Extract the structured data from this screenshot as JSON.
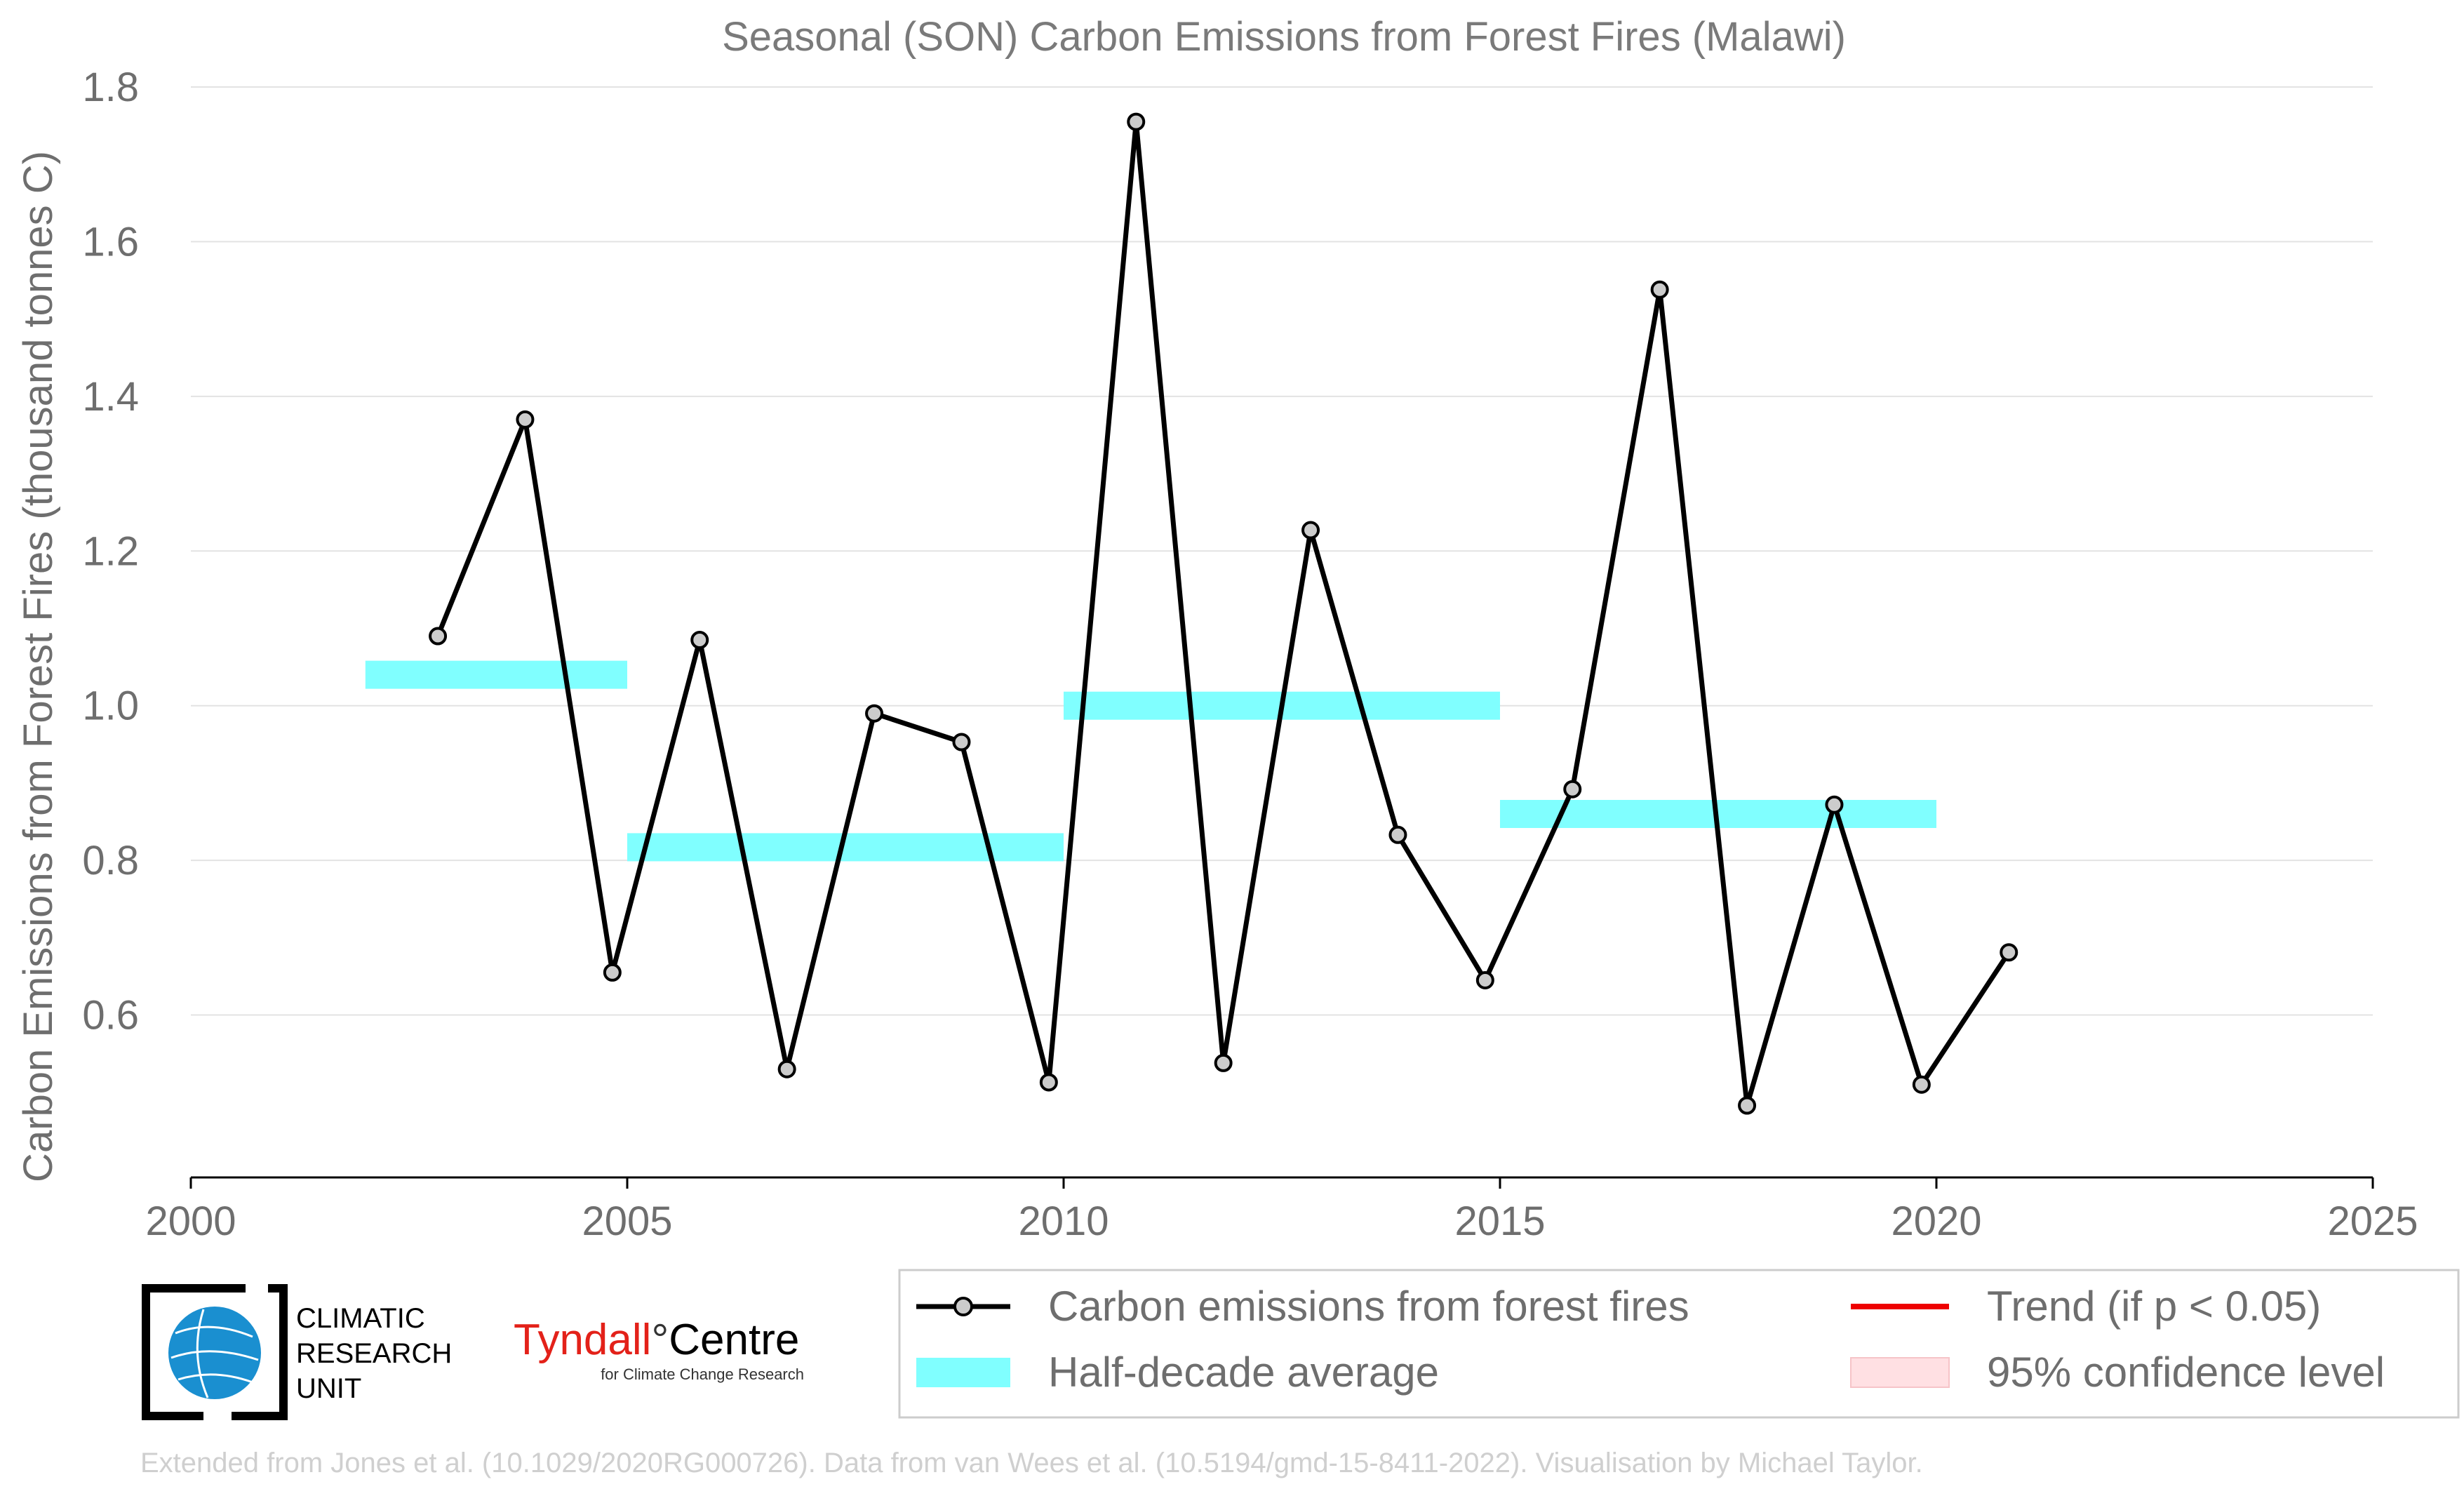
{
  "chart_data": {
    "type": "line",
    "title": "Seasonal (SON) Carbon Emissions from Forest Fires (Malawi)",
    "xlabel": "",
    "ylabel": "Carbon Emissions from Forest Fires (thousand tonnes C)",
    "xlim": [
      2000,
      2025
    ],
    "ylim": [
      0.39,
      1.8
    ],
    "x_ticks": [
      2000,
      2005,
      2010,
      2015,
      2020,
      2025
    ],
    "y_ticks": [
      0.6,
      0.8,
      1.0,
      1.2,
      1.4,
      1.6,
      1.8
    ],
    "y_tick_labels": [
      "0.6",
      "0.8",
      "1.0",
      "1.2",
      "1.4",
      "1.6",
      "1.8"
    ],
    "grid": "horizontal",
    "series": [
      {
        "name": "Carbon emissions from forest fires",
        "color": "#000000",
        "marker_fill": "#cccccc",
        "x": [
          2002.83,
          2003.83,
          2004.83,
          2005.83,
          2006.83,
          2007.83,
          2008.83,
          2009.83,
          2010.83,
          2011.83,
          2012.83,
          2013.83,
          2014.83,
          2015.83,
          2016.83,
          2017.83,
          2018.83,
          2019.83,
          2020.83
        ],
        "y": [
          1.09,
          1.37,
          0.655,
          1.085,
          0.53,
          0.99,
          0.953,
          0.513,
          1.755,
          0.538,
          1.227,
          0.833,
          0.645,
          0.892,
          1.538,
          0.483,
          0.872,
          0.51,
          0.681
        ]
      }
    ],
    "half_decade_average": {
      "name": "Half-decade average",
      "color": "#80ffff",
      "segments": [
        {
          "x0": 2002,
          "x1": 2005,
          "y": 1.04
        },
        {
          "x0": 2005,
          "x1": 2010,
          "y": 0.817
        },
        {
          "x0": 2010,
          "x1": 2015,
          "y": 1.0
        },
        {
          "x0": 2015,
          "x1": 2020,
          "y": 0.86
        }
      ]
    },
    "legend": {
      "placement": "bottom-right",
      "entries": [
        {
          "label": "Carbon emissions from forest fires",
          "kind": "line-marker",
          "color": "#000000"
        },
        {
          "label": "Trend (if p < 0.05)",
          "kind": "line",
          "color": "#ee0000"
        },
        {
          "label": "Half-decade average",
          "kind": "patch",
          "color": "#80ffff"
        },
        {
          "label": "95% confidence level",
          "kind": "patch",
          "color": "#ffe0e3"
        }
      ]
    }
  },
  "logos": {
    "cru": {
      "line1": "CLIMATIC",
      "line2": "RESEARCH",
      "line3": "UNIT",
      "icon": "globe-icon"
    },
    "tyndall": {
      "name_red": "Tyndall",
      "degree": "°",
      "name_black": "Centre",
      "subtitle": "for Climate Change Research",
      "color": "#e32119"
    }
  },
  "footer": "Extended from Jones et al. (10.1029/2020RG000726). Data from van Wees et al. (10.5194/gmd-15-8411-2022). Visualisation by Michael Taylor."
}
